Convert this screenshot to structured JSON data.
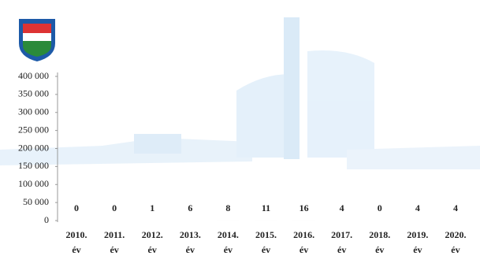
{
  "chart_data": {
    "type": "bar",
    "categories": [
      "2010. év",
      "2011. év",
      "2012. év",
      "2013. év",
      "2014. év",
      "2015. év",
      "2016. év",
      "2017. év",
      "2018. év",
      "2019. év",
      "2020. év"
    ],
    "values": [
      0,
      0,
      1,
      6,
      8,
      11,
      16,
      4,
      0,
      4,
      4
    ],
    "color": "#555555",
    "ylim": [
      0,
      400000
    ],
    "yticks": [
      0,
      {
        "value": 50000,
        "label": "50 000"
      },
      {
        "value": 100000,
        "label": "100 000"
      },
      {
        "value": 150000,
        "label": "150 000"
      },
      {
        "value": 200000,
        "label": "200 000"
      },
      {
        "value": 250000,
        "label": "250 000"
      },
      {
        "value": 300000,
        "label": "300 000"
      },
      {
        "value": 350000,
        "label": "350 000"
      },
      {
        "value": 400000,
        "label": "400 000"
      }
    ]
  }
}
